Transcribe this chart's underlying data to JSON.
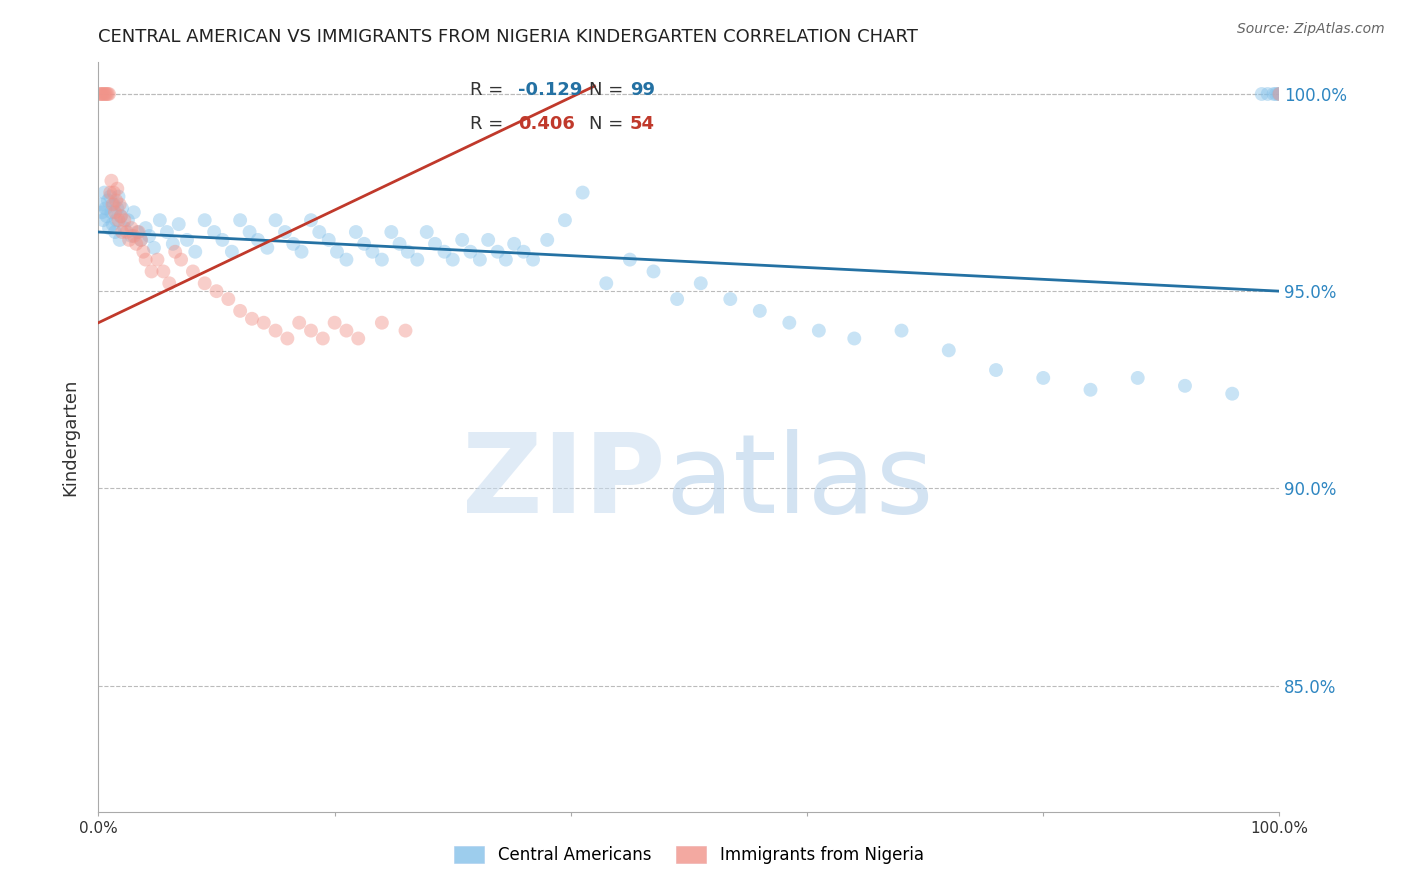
{
  "title": "CENTRAL AMERICAN VS IMMIGRANTS FROM NIGERIA KINDERGARTEN CORRELATION CHART",
  "source": "Source: ZipAtlas.com",
  "ylabel": "Kindergarten",
  "xmin": 0.0,
  "xmax": 1.0,
  "ymin": 0.818,
  "ymax": 1.008,
  "yticks": [
    0.85,
    0.9,
    0.95,
    1.0
  ],
  "ytick_labels": [
    "85.0%",
    "90.0%",
    "95.0%",
    "100.0%"
  ],
  "blue_color": "#85C1E9",
  "pink_color": "#F1948A",
  "blue_line_color": "#2471A3",
  "pink_line_color": "#C0392B",
  "right_axis_color": "#2E86C1",
  "grid_color": "#BBBBBB",
  "background": "#FFFFFF",
  "blue_trend_x": [
    0.0,
    1.0
  ],
  "blue_trend_y": [
    0.965,
    0.95
  ],
  "pink_trend_x": [
    0.0,
    0.42
  ],
  "pink_trend_y": [
    0.942,
    1.002
  ],
  "marker_size": 100,
  "marker_alpha": 0.45,
  "line_width": 2.0,
  "blue_x": [
    0.002,
    0.003,
    0.004,
    0.005,
    0.006,
    0.007,
    0.008,
    0.009,
    0.01,
    0.011,
    0.012,
    0.013,
    0.014,
    0.015,
    0.016,
    0.017,
    0.018,
    0.019,
    0.02,
    0.022,
    0.025,
    0.028,
    0.03,
    0.033,
    0.036,
    0.04,
    0.043,
    0.047,
    0.052,
    0.058,
    0.063,
    0.068,
    0.075,
    0.082,
    0.09,
    0.098,
    0.105,
    0.113,
    0.12,
    0.128,
    0.135,
    0.143,
    0.15,
    0.158,
    0.165,
    0.172,
    0.18,
    0.187,
    0.195,
    0.202,
    0.21,
    0.218,
    0.225,
    0.232,
    0.24,
    0.248,
    0.255,
    0.262,
    0.27,
    0.278,
    0.285,
    0.293,
    0.3,
    0.308,
    0.315,
    0.323,
    0.33,
    0.338,
    0.345,
    0.352,
    0.36,
    0.368,
    0.38,
    0.395,
    0.41,
    0.43,
    0.45,
    0.47,
    0.49,
    0.51,
    0.535,
    0.56,
    0.585,
    0.61,
    0.64,
    0.68,
    0.72,
    0.76,
    0.8,
    0.84,
    0.88,
    0.92,
    0.96,
    0.985,
    0.99,
    0.995,
    0.997,
    0.999,
    1.0
  ],
  "blue_y": [
    0.972,
    0.97,
    0.968,
    0.975,
    0.971,
    0.969,
    0.973,
    0.966,
    0.974,
    0.97,
    0.967,
    0.972,
    0.965,
    0.968,
    0.971,
    0.974,
    0.963,
    0.969,
    0.971,
    0.966,
    0.968,
    0.964,
    0.97,
    0.965,
    0.963,
    0.966,
    0.964,
    0.961,
    0.968,
    0.965,
    0.962,
    0.967,
    0.963,
    0.96,
    0.968,
    0.965,
    0.963,
    0.96,
    0.968,
    0.965,
    0.963,
    0.961,
    0.968,
    0.965,
    0.962,
    0.96,
    0.968,
    0.965,
    0.963,
    0.96,
    0.958,
    0.965,
    0.962,
    0.96,
    0.958,
    0.965,
    0.962,
    0.96,
    0.958,
    0.965,
    0.962,
    0.96,
    0.958,
    0.963,
    0.96,
    0.958,
    0.963,
    0.96,
    0.958,
    0.962,
    0.96,
    0.958,
    0.963,
    0.968,
    0.975,
    0.952,
    0.958,
    0.955,
    0.948,
    0.952,
    0.948,
    0.945,
    0.942,
    0.94,
    0.938,
    0.94,
    0.935,
    0.93,
    0.928,
    0.925,
    0.928,
    0.926,
    0.924,
    1.0,
    1.0,
    1.0,
    1.0,
    1.0,
    1.0
  ],
  "pink_x": [
    0.001,
    0.002,
    0.003,
    0.004,
    0.005,
    0.006,
    0.007,
    0.008,
    0.009,
    0.01,
    0.011,
    0.012,
    0.013,
    0.014,
    0.015,
    0.016,
    0.017,
    0.018,
    0.019,
    0.02,
    0.022,
    0.024,
    0.026,
    0.028,
    0.03,
    0.032,
    0.034,
    0.036,
    0.038,
    0.04,
    0.045,
    0.05,
    0.055,
    0.06,
    0.065,
    0.07,
    0.08,
    0.09,
    0.1,
    0.11,
    0.12,
    0.13,
    0.14,
    0.15,
    0.16,
    0.17,
    0.18,
    0.19,
    0.2,
    0.21,
    0.22,
    0.24,
    0.26,
    1.0
  ],
  "pink_y": [
    1.0,
    1.0,
    1.0,
    1.0,
    1.0,
    1.0,
    1.0,
    1.0,
    1.0,
    0.975,
    0.978,
    0.972,
    0.975,
    0.97,
    0.973,
    0.976,
    0.968,
    0.972,
    0.969,
    0.965,
    0.968,
    0.965,
    0.963,
    0.966,
    0.964,
    0.962,
    0.965,
    0.963,
    0.96,
    0.958,
    0.955,
    0.958,
    0.955,
    0.952,
    0.96,
    0.958,
    0.955,
    0.952,
    0.95,
    0.948,
    0.945,
    0.943,
    0.942,
    0.94,
    0.938,
    0.942,
    0.94,
    0.938,
    0.942,
    0.94,
    0.938,
    0.942,
    0.94,
    1.0
  ]
}
